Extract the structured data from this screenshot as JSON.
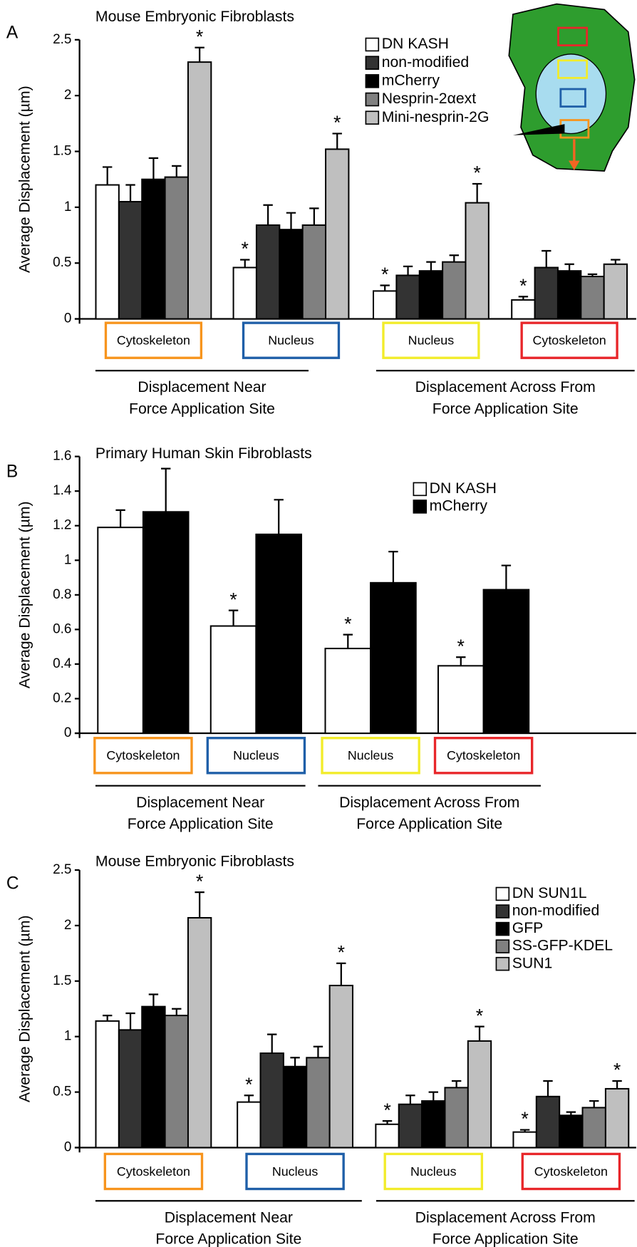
{
  "chart_data": [
    {
      "type": "bar",
      "panel": "A",
      "title": "Mouse Embryonic Fibroblasts",
      "y_label": "Average Displacement (µm)",
      "categories": [
        "Cytoskeleton",
        "Nucleus",
        "Nucleus",
        "Cytoskeleton"
      ],
      "category_colors": [
        "#f7941d",
        "#1f5fa8",
        "#f2ec2a",
        "#e8262a"
      ],
      "groups": [
        [
          "Displacement Near",
          "Force Application Site"
        ],
        [
          "Displacement Across From",
          "Force Application Site"
        ]
      ],
      "ylim": [
        0,
        2.5
      ],
      "yticks": [
        0,
        0.5,
        1,
        1.5,
        2,
        2.5
      ],
      "series": [
        {
          "name": "DN KASH",
          "color": "#ffffff",
          "values": [
            1.2,
            0.46,
            0.25,
            0.17
          ],
          "errors": [
            0.16,
            0.07,
            0.05,
            0.03
          ],
          "stars": [
            null,
            "*",
            "*",
            "*"
          ]
        },
        {
          "name": "non-modified",
          "color": "#333333",
          "values": [
            1.05,
            0.84,
            0.39,
            0.46
          ],
          "errors": [
            0.15,
            0.18,
            0.08,
            0.15
          ],
          "stars": [
            null,
            null,
            null,
            null
          ]
        },
        {
          "name": "mCherry",
          "color": "#000000",
          "values": [
            1.25,
            0.8,
            0.43,
            0.43
          ],
          "errors": [
            0.19,
            0.15,
            0.08,
            0.06
          ],
          "stars": [
            null,
            null,
            null,
            null
          ]
        },
        {
          "name": "Nesprin-2αext",
          "color": "#808080",
          "values": [
            1.27,
            0.84,
            0.51,
            0.38
          ],
          "errors": [
            0.1,
            0.15,
            0.06,
            0.02
          ],
          "stars": [
            null,
            null,
            null,
            null
          ]
        },
        {
          "name": "Mini-nesprin-2G",
          "color": "#bfbfbf",
          "values": [
            2.3,
            1.52,
            1.04,
            0.49
          ],
          "errors": [
            0.13,
            0.14,
            0.17,
            0.04
          ],
          "stars": [
            "*",
            "*",
            "*",
            null
          ]
        }
      ]
    },
    {
      "type": "bar",
      "panel": "B",
      "title": "Primary Human Skin Fibroblasts",
      "y_label": "Average Displacement (µm)",
      "categories": [
        "Cytoskeleton",
        "Nucleus",
        "Nucleus",
        "Cytoskeleton"
      ],
      "category_colors": [
        "#f7941d",
        "#1f5fa8",
        "#f2ec2a",
        "#e8262a"
      ],
      "groups": [
        [
          "Displacement Near",
          "Force Application Site"
        ],
        [
          "Displacement Across From",
          "Force Application Site"
        ]
      ],
      "ylim": [
        0,
        1.6
      ],
      "yticks": [
        0,
        0.2,
        0.4,
        0.6,
        0.8,
        1,
        1.2,
        1.4,
        1.6
      ],
      "series": [
        {
          "name": "DN KASH",
          "color": "#ffffff",
          "values": [
            1.19,
            0.62,
            0.49,
            0.39
          ],
          "errors": [
            0.1,
            0.09,
            0.08,
            0.05
          ],
          "stars": [
            null,
            "*",
            "*",
            "*"
          ]
        },
        {
          "name": "mCherry",
          "color": "#000000",
          "values": [
            1.28,
            1.15,
            0.87,
            0.83
          ],
          "errors": [
            0.25,
            0.2,
            0.18,
            0.14
          ],
          "stars": [
            null,
            null,
            null,
            null
          ]
        }
      ]
    },
    {
      "type": "bar",
      "panel": "C",
      "title": "Mouse Embryonic Fibroblasts",
      "y_label": "Average Displacement (µm)",
      "categories": [
        "Cytoskeleton",
        "Nucleus",
        "Nucleus",
        "Cytoskeleton"
      ],
      "category_colors": [
        "#f7941d",
        "#1f5fa8",
        "#f2ec2a",
        "#e8262a"
      ],
      "groups": [
        [
          "Displacement Near",
          "Force Application Site"
        ],
        [
          "Displacement Across From",
          "Force Application Site"
        ]
      ],
      "ylim": [
        0,
        2.5
      ],
      "yticks": [
        0,
        0.5,
        1,
        1.5,
        2,
        2.5
      ],
      "series": [
        {
          "name": "DN SUN1L",
          "color": "#ffffff",
          "values": [
            1.14,
            0.41,
            0.21,
            0.14
          ],
          "errors": [
            0.05,
            0.06,
            0.03,
            0.02
          ],
          "stars": [
            null,
            "*",
            "*",
            "*"
          ]
        },
        {
          "name": "non-modified",
          "color": "#333333",
          "values": [
            1.06,
            0.85,
            0.39,
            0.46
          ],
          "errors": [
            0.15,
            0.17,
            0.08,
            0.14
          ],
          "stars": [
            null,
            null,
            null,
            null
          ]
        },
        {
          "name": "GFP",
          "color": "#000000",
          "values": [
            1.27,
            0.73,
            0.42,
            0.29
          ],
          "errors": [
            0.11,
            0.08,
            0.08,
            0.03
          ],
          "stars": [
            null,
            null,
            null,
            null
          ]
        },
        {
          "name": "SS-GFP-KDEL",
          "color": "#808080",
          "values": [
            1.19,
            0.81,
            0.54,
            0.36
          ],
          "errors": [
            0.06,
            0.1,
            0.06,
            0.06
          ],
          "stars": [
            null,
            null,
            null,
            null
          ]
        },
        {
          "name": "SUN1",
          "color": "#bfbfbf",
          "values": [
            2.07,
            1.46,
            0.96,
            0.53
          ],
          "errors": [
            0.23,
            0.2,
            0.13,
            0.07
          ],
          "stars": [
            "*",
            "*",
            "*",
            "*"
          ]
        }
      ]
    }
  ]
}
